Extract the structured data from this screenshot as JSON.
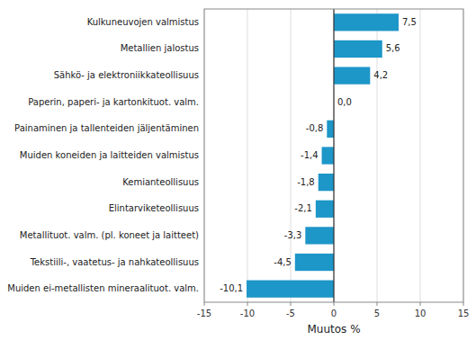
{
  "chart_data": {
    "type": "bar",
    "orientation": "horizontal",
    "categories": [
      "Muiden ei-metallisten mineraalituot. valm.",
      "Tekstiili-, vaatetus- ja nahkateollisuus",
      "Metallituot. valm. (pl. koneet ja laitteet)",
      "Elintarviketeollisuus",
      "Kemianteollisuus",
      "Muiden koneiden ja laitteiden valmistus",
      "Painaminen ja tallenteiden jäljentäminen",
      "Paperin, paperi- ja kartonkituot. valm.",
      "Sähkö- ja elektroniikkateollisuus",
      "Metallien jalostus",
      "Kulkuneuvojen valmistus"
    ],
    "values": [
      -10.1,
      -4.5,
      -3.3,
      -2.1,
      -1.8,
      -1.4,
      -0.8,
      0.0,
      4.2,
      5.6,
      7.5
    ],
    "value_labels": [
      "-10,1",
      "-4,5",
      "-3,3",
      "-2,1",
      "-1,8",
      "-1,4",
      "-0,8",
      "0,0",
      "4,2",
      "5,6",
      "7,5"
    ],
    "data_labels": true,
    "color": "#1d96c8",
    "xlabel": "Muutos %",
    "xlim": [
      -15,
      15
    ],
    "xticks": [
      -15,
      -10,
      -5,
      0,
      5,
      10,
      15
    ],
    "grid": true
  }
}
